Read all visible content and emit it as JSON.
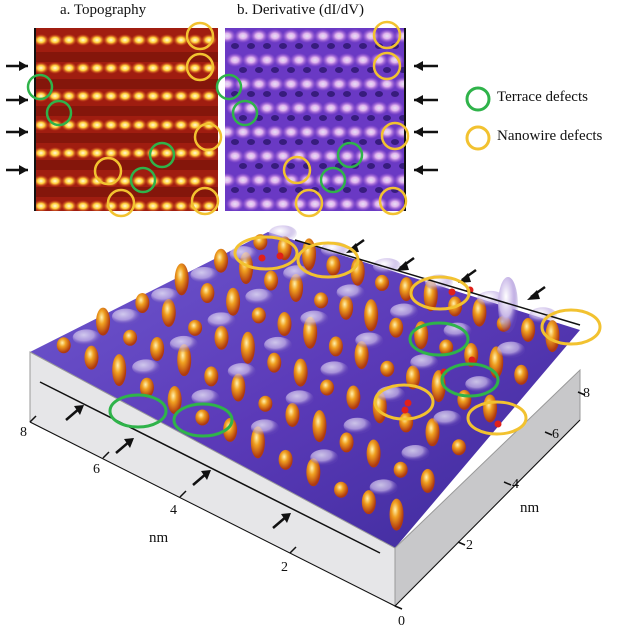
{
  "panels": {
    "topography_title": "a. Topography",
    "derivative_title": "b. Derivative (dI/dV)"
  },
  "legend": {
    "terrace": {
      "label": "Terrace defects",
      "color": "#2fb34a"
    },
    "nanowire": {
      "label": "Nanowire defects",
      "color": "#f2c230"
    }
  },
  "axes": {
    "x_label": "nm",
    "y_label": "nm",
    "left_ticks": [
      "8",
      "6",
      "4",
      "2"
    ],
    "right_ticks": [
      "0",
      "2",
      "4",
      "6",
      "8"
    ]
  },
  "colors": {
    "topo_base": "#a01d10",
    "topo_wire": "#ffd24a",
    "deriv_base": "#6a39c4",
    "deriv_bright": "#f4c8f4",
    "surface_base": "#5b3ab8",
    "peak_orange": "#f0a020",
    "arrow": "#111111"
  }
}
